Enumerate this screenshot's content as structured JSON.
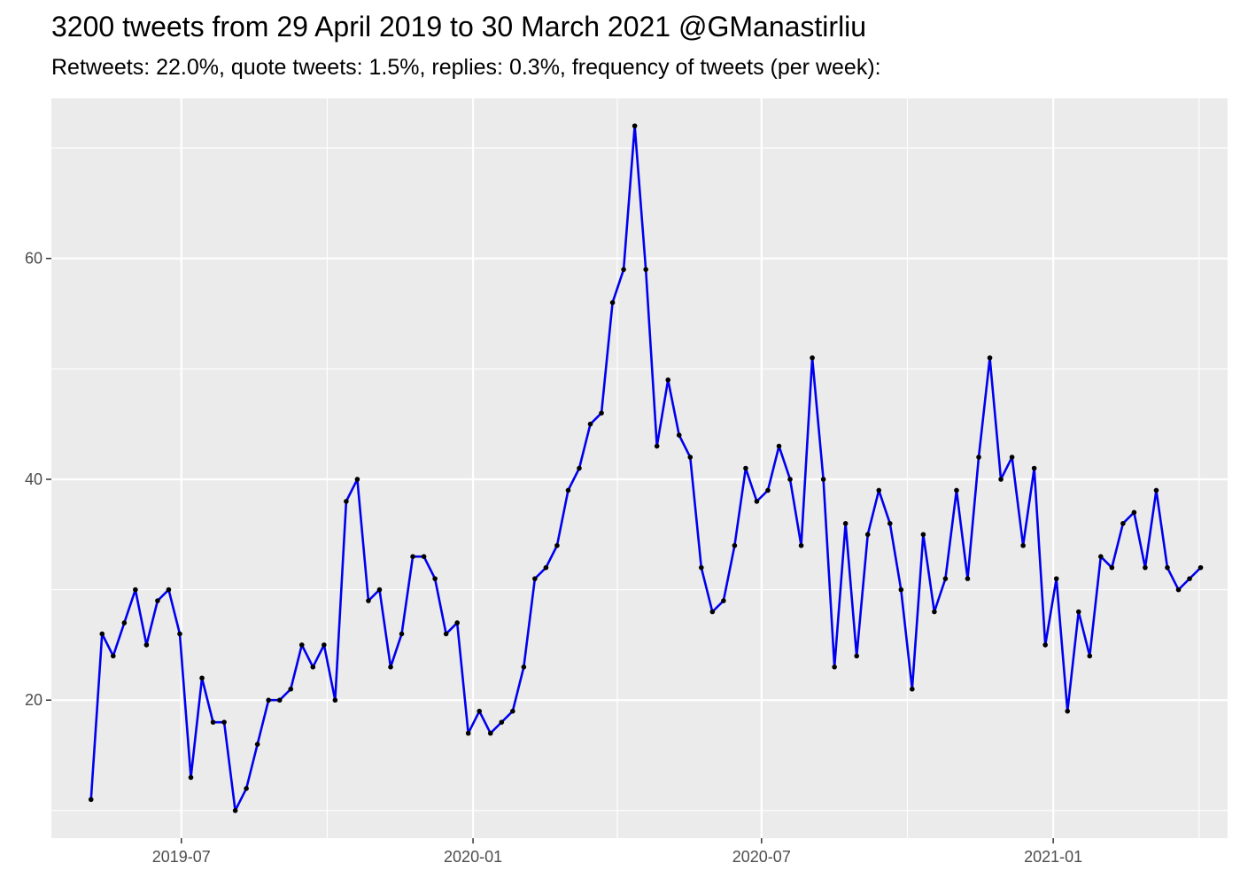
{
  "chart_data": {
    "type": "line",
    "title": "3200 tweets from 29 April 2019 to 30 March 2021 @GManastirliu",
    "subtitle": "Retweets: 22.0%, quote tweets: 1.5%, replies: 0.3%, frequency of tweets (per week):",
    "xlabel": "",
    "ylabel": "",
    "x_start": "2019-05-05",
    "x_step_days": 7,
    "xlim": [
      "2019-04-10",
      "2021-04-21"
    ],
    "ylim": [
      7.5,
      74.5
    ],
    "x_ticks": [
      {
        "date": "2019-07-01",
        "label": "2019-07"
      },
      {
        "date": "2020-01-01",
        "label": "2020-01"
      },
      {
        "date": "2020-07-01",
        "label": "2020-07"
      },
      {
        "date": "2021-01-01",
        "label": "2021-01"
      }
    ],
    "y_ticks": [
      20,
      40,
      60
    ],
    "grid": true,
    "legend": "none",
    "line_color": "#0000ee",
    "point_color": "#000000",
    "background_color": "#ebebeb",
    "series": [
      {
        "values": [
          11,
          26,
          24,
          27,
          30,
          25,
          29,
          30,
          26,
          13,
          22,
          18,
          18,
          10,
          12,
          16,
          20,
          20,
          21,
          25,
          23,
          25,
          20,
          38,
          40,
          29,
          30,
          23,
          26,
          33,
          33,
          31,
          26,
          27,
          17,
          19,
          17,
          18,
          19,
          23,
          31,
          32,
          34,
          39,
          41,
          45,
          46,
          56,
          59,
          72,
          59,
          43,
          49,
          44,
          42,
          32,
          28,
          29,
          34,
          41,
          38,
          39,
          43,
          40,
          34,
          51,
          40,
          23,
          36,
          24,
          35,
          39,
          36,
          30,
          21,
          35,
          28,
          31,
          39,
          31,
          42,
          51,
          40,
          42,
          34,
          41,
          25,
          31,
          19,
          28,
          24,
          33,
          32,
          36,
          37,
          32,
          39,
          32,
          30,
          31,
          32
        ]
      }
    ]
  }
}
